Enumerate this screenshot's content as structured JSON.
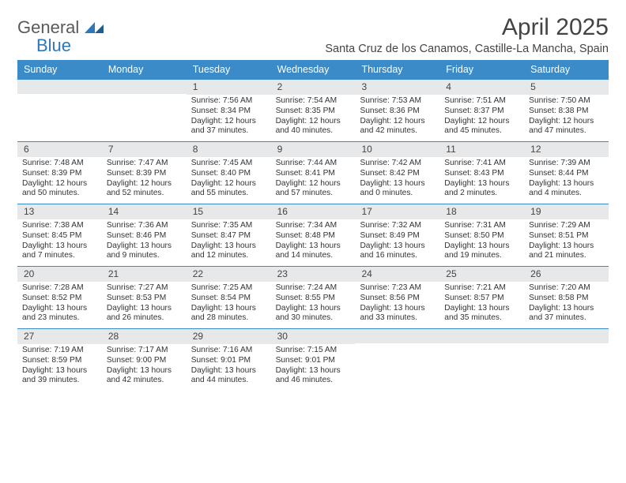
{
  "brand": {
    "part1": "General",
    "part2": "Blue"
  },
  "title": "April 2025",
  "subtitle": "Santa Cruz de los Canamos, Castille-La Mancha, Spain",
  "colors": {
    "header_bg": "#3b8bc8",
    "header_text": "#ffffff",
    "daynum_bg": "#e7e8e9",
    "border": "#3b8bc8",
    "text": "#333333",
    "logo_gray": "#5a5a5a",
    "logo_blue": "#2e77b8",
    "background": "#ffffff"
  },
  "typography": {
    "title_fontsize": 30,
    "subtitle_fontsize": 14.5,
    "dayhead_fontsize": 12.5,
    "cell_fontsize": 10.2
  },
  "day_names": [
    "Sunday",
    "Monday",
    "Tuesday",
    "Wednesday",
    "Thursday",
    "Friday",
    "Saturday"
  ],
  "weeks": [
    [
      null,
      null,
      {
        "n": "1",
        "sunrise": "7:56 AM",
        "sunset": "8:34 PM",
        "dl": "12 hours and 37 minutes."
      },
      {
        "n": "2",
        "sunrise": "7:54 AM",
        "sunset": "8:35 PM",
        "dl": "12 hours and 40 minutes."
      },
      {
        "n": "3",
        "sunrise": "7:53 AM",
        "sunset": "8:36 PM",
        "dl": "12 hours and 42 minutes."
      },
      {
        "n": "4",
        "sunrise": "7:51 AM",
        "sunset": "8:37 PM",
        "dl": "12 hours and 45 minutes."
      },
      {
        "n": "5",
        "sunrise": "7:50 AM",
        "sunset": "8:38 PM",
        "dl": "12 hours and 47 minutes."
      }
    ],
    [
      {
        "n": "6",
        "sunrise": "7:48 AM",
        "sunset": "8:39 PM",
        "dl": "12 hours and 50 minutes."
      },
      {
        "n": "7",
        "sunrise": "7:47 AM",
        "sunset": "8:39 PM",
        "dl": "12 hours and 52 minutes."
      },
      {
        "n": "8",
        "sunrise": "7:45 AM",
        "sunset": "8:40 PM",
        "dl": "12 hours and 55 minutes."
      },
      {
        "n": "9",
        "sunrise": "7:44 AM",
        "sunset": "8:41 PM",
        "dl": "12 hours and 57 minutes."
      },
      {
        "n": "10",
        "sunrise": "7:42 AM",
        "sunset": "8:42 PM",
        "dl": "13 hours and 0 minutes."
      },
      {
        "n": "11",
        "sunrise": "7:41 AM",
        "sunset": "8:43 PM",
        "dl": "13 hours and 2 minutes."
      },
      {
        "n": "12",
        "sunrise": "7:39 AM",
        "sunset": "8:44 PM",
        "dl": "13 hours and 4 minutes."
      }
    ],
    [
      {
        "n": "13",
        "sunrise": "7:38 AM",
        "sunset": "8:45 PM",
        "dl": "13 hours and 7 minutes."
      },
      {
        "n": "14",
        "sunrise": "7:36 AM",
        "sunset": "8:46 PM",
        "dl": "13 hours and 9 minutes."
      },
      {
        "n": "15",
        "sunrise": "7:35 AM",
        "sunset": "8:47 PM",
        "dl": "13 hours and 12 minutes."
      },
      {
        "n": "16",
        "sunrise": "7:34 AM",
        "sunset": "8:48 PM",
        "dl": "13 hours and 14 minutes."
      },
      {
        "n": "17",
        "sunrise": "7:32 AM",
        "sunset": "8:49 PM",
        "dl": "13 hours and 16 minutes."
      },
      {
        "n": "18",
        "sunrise": "7:31 AM",
        "sunset": "8:50 PM",
        "dl": "13 hours and 19 minutes."
      },
      {
        "n": "19",
        "sunrise": "7:29 AM",
        "sunset": "8:51 PM",
        "dl": "13 hours and 21 minutes."
      }
    ],
    [
      {
        "n": "20",
        "sunrise": "7:28 AM",
        "sunset": "8:52 PM",
        "dl": "13 hours and 23 minutes."
      },
      {
        "n": "21",
        "sunrise": "7:27 AM",
        "sunset": "8:53 PM",
        "dl": "13 hours and 26 minutes."
      },
      {
        "n": "22",
        "sunrise": "7:25 AM",
        "sunset": "8:54 PM",
        "dl": "13 hours and 28 minutes."
      },
      {
        "n": "23",
        "sunrise": "7:24 AM",
        "sunset": "8:55 PM",
        "dl": "13 hours and 30 minutes."
      },
      {
        "n": "24",
        "sunrise": "7:23 AM",
        "sunset": "8:56 PM",
        "dl": "13 hours and 33 minutes."
      },
      {
        "n": "25",
        "sunrise": "7:21 AM",
        "sunset": "8:57 PM",
        "dl": "13 hours and 35 minutes."
      },
      {
        "n": "26",
        "sunrise": "7:20 AM",
        "sunset": "8:58 PM",
        "dl": "13 hours and 37 minutes."
      }
    ],
    [
      {
        "n": "27",
        "sunrise": "7:19 AM",
        "sunset": "8:59 PM",
        "dl": "13 hours and 39 minutes."
      },
      {
        "n": "28",
        "sunrise": "7:17 AM",
        "sunset": "9:00 PM",
        "dl": "13 hours and 42 minutes."
      },
      {
        "n": "29",
        "sunrise": "7:16 AM",
        "sunset": "9:01 PM",
        "dl": "13 hours and 44 minutes."
      },
      {
        "n": "30",
        "sunrise": "7:15 AM",
        "sunset": "9:01 PM",
        "dl": "13 hours and 46 minutes."
      },
      null,
      null,
      null
    ]
  ],
  "labels": {
    "sunrise": "Sunrise:",
    "sunset": "Sunset:",
    "daylight": "Daylight:"
  }
}
